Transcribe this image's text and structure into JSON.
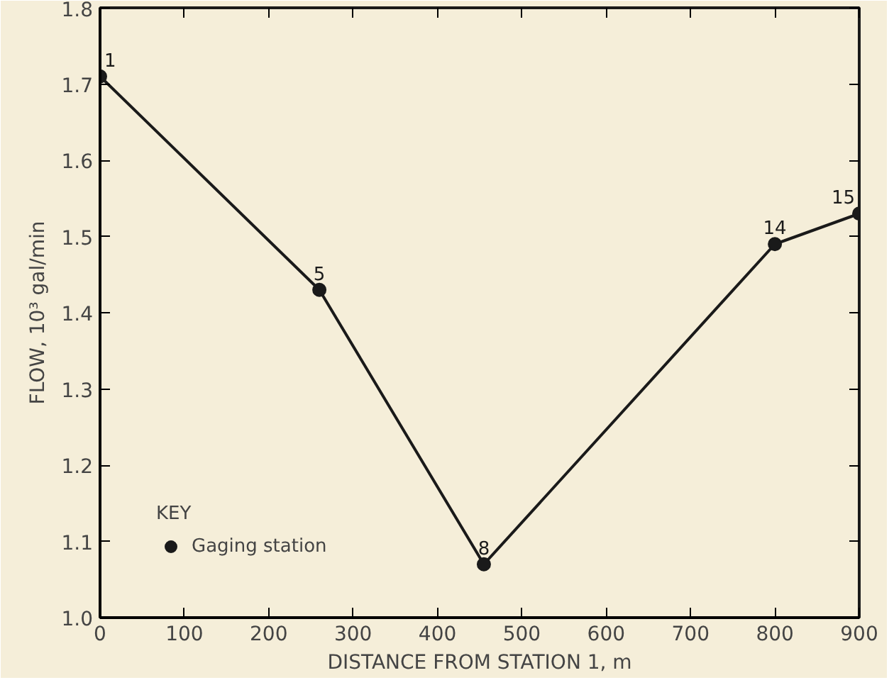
{
  "chart_data": {
    "type": "line",
    "xlabel": "DISTANCE FROM STATION 1, m",
    "ylabel": "FLOW, 10³ gal/min",
    "legend_title": "KEY",
    "x": [
      0,
      260,
      455,
      800,
      900
    ],
    "series": [
      {
        "name": "Gaging station",
        "color": "#1a1a1a",
        "values": [
          1.71,
          1.43,
          1.07,
          1.49,
          1.53
        ]
      }
    ],
    "xlim": [
      0,
      900
    ],
    "xticks": [
      0,
      100,
      200,
      300,
      400,
      500,
      600,
      700,
      800,
      900
    ],
    "ylim": [
      1.0,
      1.8
    ],
    "yticks": [
      {
        "value": 1.0,
        "label": "1.0"
      },
      1.1,
      1.2,
      1.3,
      1.4,
      1.5,
      1.6,
      1.7,
      1.8
    ],
    "marker": "circle",
    "line_style": "solid",
    "grid": false,
    "legend": "bottom left",
    "annotations": [
      {
        "text": "1",
        "x": 0,
        "y": 1.71
      },
      {
        "text": "5",
        "x": 260,
        "y": 1.43
      },
      {
        "text": "8",
        "x": 455,
        "y": 1.07
      },
      {
        "text": "14",
        "x": 800,
        "y": 1.49
      },
      {
        "text": "15",
        "x": 900,
        "y": 1.53
      }
    ]
  }
}
